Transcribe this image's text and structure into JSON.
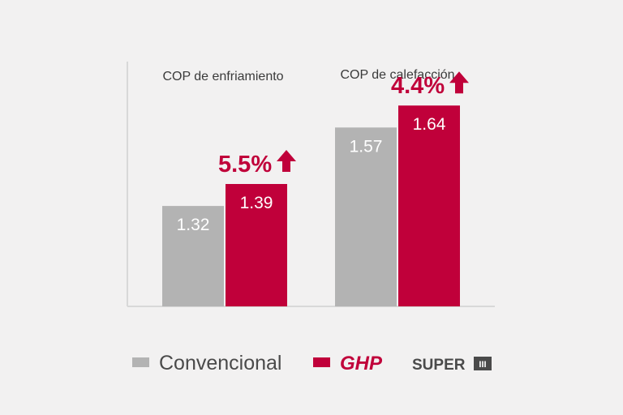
{
  "chart_data": {
    "type": "bar",
    "categories": [
      "COP de enfriamiento",
      "COP de calefacción"
    ],
    "series": [
      {
        "name": "Convencional",
        "values": [
          1.32,
          1.57
        ]
      },
      {
        "name": "GHP SUPER III",
        "values": [
          1.39,
          1.64
        ]
      }
    ],
    "value_labels": [
      [
        "1.32",
        "1.57"
      ],
      [
        "1.39",
        "1.64"
      ]
    ],
    "increase_labels": [
      "5.5%",
      "4.4%"
    ],
    "ylim": [
      1.0,
      1.78
    ],
    "grid": false,
    "legend_position": "bottom"
  },
  "legend": {
    "conventional_label": "Convencional",
    "brand_main": "GHP",
    "brand_sub": "SUPER",
    "brand_numeral": "III"
  },
  "colors": {
    "conventional": "#b3b3b3",
    "ghp": "#c0003a",
    "axis": "#d8d8d8",
    "background": "#f2f1f1"
  }
}
